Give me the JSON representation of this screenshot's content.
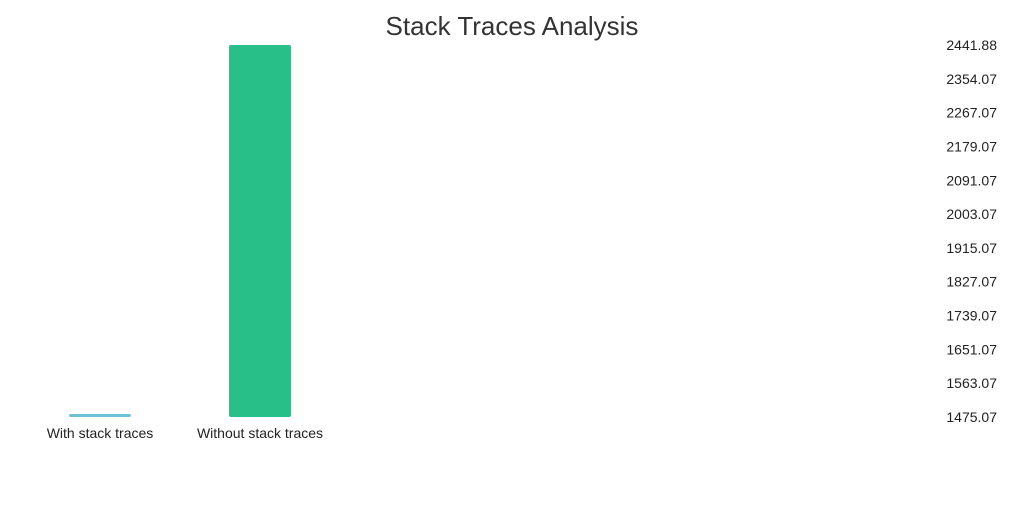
{
  "chart_data": {
    "type": "bar",
    "title": "Stack Traces Analysis",
    "xlabel": "",
    "ylabel": "",
    "categories": [
      "With stack traces",
      "Without stack traces"
    ],
    "values": [
      1478.0,
      2441.88
    ],
    "colors": [
      "#6CC2D4",
      "#29BF88"
    ],
    "ylim": [
      1475.07,
      2441.88
    ],
    "yticks": [
      "2441.88",
      "2354.07",
      "2267.07",
      "2179.07",
      "2091.07",
      "2003.07",
      "1915.07",
      "1827.07",
      "1739.07",
      "1651.07",
      "1563.07",
      "1475.07"
    ],
    "grid": false,
    "legend": "none",
    "y_axis_position": "right"
  }
}
